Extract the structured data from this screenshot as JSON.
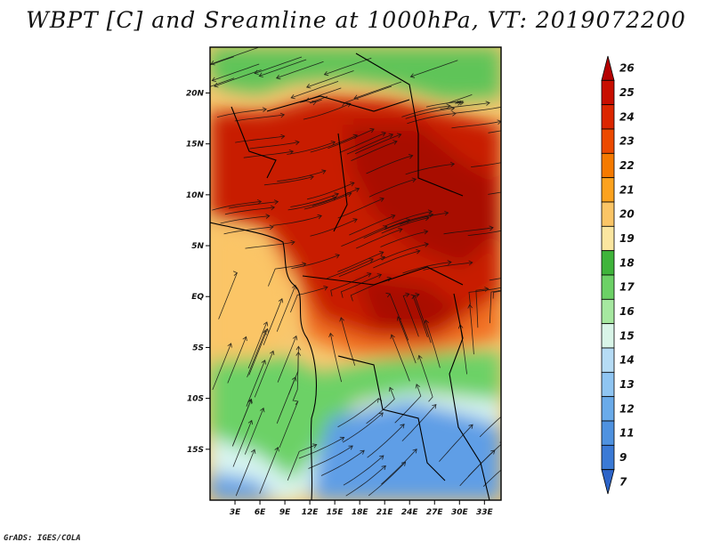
{
  "title": "WBPT [C] and Sreamline at 1000hPa, VT: 2019072200",
  "footer": "GrADS: IGES/COLA",
  "map": {
    "lon_labels": [
      "3E",
      "6E",
      "9E",
      "12E",
      "15E",
      "18E",
      "21E",
      "24E",
      "27E",
      "30E",
      "33E"
    ],
    "lat_labels": [
      "20N",
      "15N",
      "10N",
      "5N",
      "EQ",
      "5S",
      "10S",
      "15S"
    ],
    "lon_values": [
      3,
      6,
      9,
      12,
      15,
      18,
      21,
      24,
      27,
      30,
      33
    ],
    "lat_values": [
      20,
      15,
      10,
      5,
      0,
      -5,
      -10,
      -15
    ]
  },
  "colorbar": {
    "labels": [
      "26",
      "25",
      "24",
      "23",
      "22",
      "21",
      "20",
      "19",
      "18",
      "17",
      "16",
      "15",
      "14",
      "13",
      "12",
      "11",
      "9",
      "7"
    ],
    "colors": [
      "#b50000",
      "#c80e00",
      "#dc2600",
      "#ec4a00",
      "#f57a00",
      "#fca21e",
      "#fbc566",
      "#fbe6a0",
      "#3fb43b",
      "#6cd166",
      "#a6e8a0",
      "#d9f5e8",
      "#b6dcf5",
      "#8fc5f2",
      "#6aabea",
      "#4f92e0",
      "#3b7ad6",
      "#2d64c8"
    ]
  },
  "fields": [
    {
      "name": "red-core",
      "color": "#c81a00"
    },
    {
      "name": "deep-red",
      "color": "#a80e00"
    },
    {
      "name": "orange-band",
      "color": "#f17020"
    },
    {
      "name": "gold-band",
      "color": "#fbc566"
    },
    {
      "name": "green-north",
      "color": "#5ec458"
    },
    {
      "name": "green-south",
      "color": "#6cd166"
    },
    {
      "name": "pale-blue",
      "color": "#d9f5f2"
    },
    {
      "name": "blue-south",
      "color": "#5e9ee6"
    }
  ]
}
